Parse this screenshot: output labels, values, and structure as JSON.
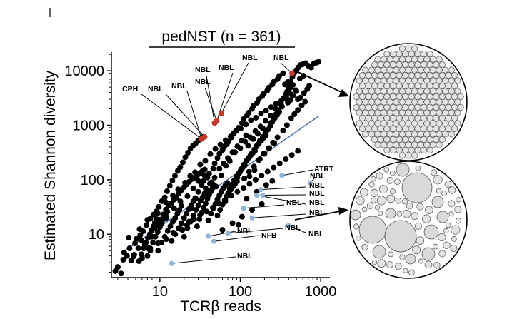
{
  "chart_data": {
    "type": "scatter",
    "title": "pedNST (n = 361)",
    "xlabel": "TCRβ reads",
    "ylabel": "Estimated Shannon diversity",
    "xscale": "log",
    "yscale": "log",
    "xlim": [
      2.5,
      1300
    ],
    "ylim": [
      1.6,
      22000
    ],
    "xticks": [
      10,
      100,
      1000
    ],
    "xtick_labels": [
      "10",
      "100",
      "1000"
    ],
    "yticks": [
      10,
      100,
      1000,
      10000
    ],
    "ytick_labels": [
      "10",
      "100",
      "1000",
      "10000"
    ],
    "grid": false,
    "legend": "none",
    "colors": {
      "black_points": "#000000",
      "red_points": "#c0392b",
      "blue_points": "#8fb4d6",
      "trend_line": "#4a6fa5"
    },
    "trend_line": {
      "x": [
        3.3,
        950
      ],
      "y": [
        4.4,
        1480
      ]
    },
    "black_points": [
      [
        2.8,
        2.1
      ],
      [
        3.0,
        2.5
      ],
      [
        3.3,
        1.9
      ],
      [
        3.5,
        3.4
      ],
      [
        3.6,
        4.6
      ],
      [
        3.9,
        4.0
      ],
      [
        4.2,
        5.5
      ],
      [
        4.4,
        3.3
      ],
      [
        4.7,
        3.9
      ],
      [
        4.9,
        6.8
      ],
      [
        5.1,
        8.2
      ],
      [
        5.4,
        5.5
      ],
      [
        5.7,
        9.6
      ],
      [
        5.9,
        7.8
      ],
      [
        6.2,
        11.3
      ],
      [
        6.5,
        6.7
      ],
      [
        6.8,
        14.7
      ],
      [
        7.2,
        5.5
      ],
      [
        7.6,
        19.3
      ],
      [
        7.9,
        11.6
      ],
      [
        8.3,
        22.9
      ],
      [
        8.6,
        13.2
      ],
      [
        9.0,
        26.1
      ],
      [
        9.3,
        16.2
      ],
      [
        9.7,
        31.9
      ],
      [
        10.2,
        18.6
      ],
      [
        10.6,
        40.5
      ],
      [
        11.0,
        23.1
      ],
      [
        11.5,
        47.4
      ],
      [
        11.9,
        28.4
      ],
      [
        12.3,
        61.7
      ],
      [
        12.8,
        33.1
      ],
      [
        13.3,
        77.8
      ],
      [
        13.8,
        36.3
      ],
      [
        14.3,
        96.5
      ],
      [
        14.9,
        42.9
      ],
      [
        15.4,
        117.7
      ],
      [
        16.0,
        46.8
      ],
      [
        16.7,
        145.3
      ],
      [
        17.2,
        55.6
      ],
      [
        17.9,
        169.8
      ],
      [
        18.5,
        64.7
      ],
      [
        19.3,
        208.8
      ],
      [
        20.0,
        73.8
      ],
      [
        20.7,
        258.8
      ],
      [
        21.5,
        82.4
      ],
      [
        22.3,
        311.5
      ],
      [
        23.1,
        91.7
      ],
      [
        24.0,
        375.2
      ],
      [
        24.9,
        102.6
      ],
      [
        25.9,
        426.6
      ],
      [
        26.8,
        108.9
      ],
      [
        27.9,
        468.8
      ],
      [
        28.9,
        117.7
      ],
      [
        30.0,
        524.8
      ],
      [
        31.2,
        129.4
      ],
      [
        32.3,
        571.0
      ],
      [
        33.5,
        143.0
      ],
      [
        34.8,
        610.4
      ],
      [
        36.1,
        154.2
      ],
      [
        4.1,
        8.7
      ],
      [
        5.6,
        12.4
      ],
      [
        7.0,
        18.3
      ],
      [
        9.4,
        24.4
      ],
      [
        11.8,
        38.7
      ],
      [
        14.5,
        51.2
      ],
      [
        16.9,
        66.8
      ],
      [
        20.6,
        88.3
      ],
      [
        23.8,
        117.4
      ],
      [
        27.4,
        137.0
      ],
      [
        31.8,
        190.7
      ],
      [
        36.7,
        222.7
      ],
      [
        42.4,
        296.8
      ],
      [
        49.0,
        369.2
      ],
      [
        56.6,
        441.9
      ],
      [
        65.6,
        528.9
      ],
      [
        75.7,
        619.4
      ],
      [
        87.6,
        775.2
      ],
      [
        101.1,
        871.8
      ],
      [
        117.0,
        1037.8
      ],
      [
        135.3,
        1235.4
      ],
      [
        156.3,
        1375.1
      ],
      [
        180.7,
        1631.4
      ],
      [
        209.0,
        1836.6
      ],
      [
        241.6,
        2150.8
      ],
      [
        279.2,
        2492.4
      ],
      [
        322.9,
        2788.6
      ],
      [
        373.4,
        3217.6
      ],
      [
        431.8,
        3675.5
      ],
      [
        499.3,
        4229.7
      ],
      [
        6.0,
        3.6
      ],
      [
        7.6,
        5.0
      ],
      [
        9.5,
        6.8
      ],
      [
        12.0,
        8.1
      ],
      [
        14.7,
        10.7
      ],
      [
        18.1,
        12.5
      ],
      [
        21.7,
        14.8
      ],
      [
        26.4,
        18.9
      ],
      [
        31.6,
        22.6
      ],
      [
        38.1,
        26.1
      ],
      [
        45.6,
        30.7
      ],
      [
        54.4,
        36.3
      ],
      [
        64.9,
        42.8
      ],
      [
        77.3,
        50.8
      ],
      [
        92.0,
        60.3
      ],
      [
        109.6,
        71.2
      ],
      [
        130.2,
        84.5
      ],
      [
        154.8,
        100.0
      ],
      [
        184.0,
        118.8
      ],
      [
        218.7,
        141.3
      ],
      [
        260.0,
        168.4
      ],
      [
        309.2,
        200.6
      ],
      [
        367.6,
        238.8
      ],
      [
        437.1,
        283.8
      ],
      [
        519.8,
        337.0
      ],
      [
        19.0,
        12.0
      ],
      [
        23.0,
        17.0
      ],
      [
        25.0,
        30.0
      ],
      [
        28.0,
        45.0
      ],
      [
        30.0,
        60.0
      ],
      [
        33.0,
        80.0
      ],
      [
        35.0,
        95.0
      ],
      [
        37.0,
        70.0
      ],
      [
        39.0,
        110.0
      ],
      [
        41.0,
        130.0
      ],
      [
        44.0,
        90.0
      ],
      [
        46.0,
        160.0
      ],
      [
        48.0,
        200.0
      ],
      [
        50.0,
        75.0
      ],
      [
        52.0,
        250.0
      ],
      [
        55.0,
        300.0
      ],
      [
        58.0,
        120.0
      ],
      [
        60.0,
        350.0
      ],
      [
        63.0,
        400.0
      ],
      [
        66.0,
        180.0
      ],
      [
        68.0,
        450.0
      ],
      [
        71.0,
        500.0
      ],
      [
        74.0,
        220.0
      ],
      [
        78.0,
        600.0
      ],
      [
        82.0,
        700.0
      ],
      [
        86.0,
        320.0
      ],
      [
        90.0,
        800.0
      ],
      [
        95.0,
        900.0
      ],
      [
        100.0,
        380.0
      ],
      [
        105.0,
        1100.0
      ],
      [
        110.0,
        1300.0
      ],
      [
        115.0,
        500.0
      ],
      [
        121.0,
        1500.0
      ],
      [
        127.0,
        1700.0
      ],
      [
        133.0,
        600.0
      ],
      [
        140.0,
        2000.0
      ],
      [
        147.0,
        2300.0
      ],
      [
        154.0,
        780.0
      ],
      [
        162.0,
        2600.0
      ],
      [
        170.0,
        3000.0
      ],
      [
        178.0,
        950.0
      ],
      [
        187.0,
        3400.0
      ],
      [
        196.0,
        3800.0
      ],
      [
        206.0,
        1200.0
      ],
      [
        216.0,
        4300.0
      ],
      [
        227.0,
        4900.0
      ],
      [
        238.0,
        1500.0
      ],
      [
        250.0,
        5600.0
      ],
      [
        262.0,
        6300.0
      ],
      [
        275.0,
        2000.0
      ],
      [
        290.0,
        7000.0
      ],
      [
        305.0,
        8000.0
      ],
      [
        320.0,
        2600.0
      ],
      [
        340.0,
        9000.0
      ],
      [
        360.0,
        3200.0
      ],
      [
        380.0,
        4100.0
      ],
      [
        400.0,
        5200.0
      ],
      [
        420.0,
        6500.0
      ],
      [
        445.0,
        7800.0
      ],
      [
        470.0,
        9200.0
      ],
      [
        500.0,
        10300.0
      ],
      [
        530.0,
        11600.0
      ],
      [
        560.0,
        12800.0
      ],
      [
        600.0,
        13200.0
      ],
      [
        650.0,
        13800.0
      ],
      [
        700.0,
        12400.0
      ],
      [
        760.0,
        11500.0
      ],
      [
        820.0,
        13500.0
      ],
      [
        880.0,
        14100.0
      ],
      [
        940.0,
        14600.0
      ],
      [
        300.0,
        1800.0
      ],
      [
        330.0,
        2200.0
      ],
      [
        360.0,
        5600.0
      ],
      [
        390.0,
        6200.0
      ],
      [
        420.0,
        2900.0
      ],
      [
        455.0,
        3500.0
      ],
      [
        490.0,
        4400.0
      ],
      [
        520.0,
        3000.0
      ],
      [
        550.0,
        7200.0
      ],
      [
        610.0,
        8100.0
      ],
      [
        240.0,
        1100.0
      ],
      [
        260.0,
        1400.0
      ],
      [
        280.0,
        1600.0
      ],
      [
        300.0,
        1900.0
      ],
      [
        320.0,
        2400.0
      ],
      [
        345.0,
        3100.0
      ],
      [
        370.0,
        3700.0
      ],
      [
        395.0,
        4400.0
      ],
      [
        420.0,
        4900.0
      ],
      [
        450.0,
        5500.0
      ],
      [
        160.0,
        420.0
      ],
      [
        175.0,
        520.0
      ],
      [
        190.0,
        610.0
      ],
      [
        205.0,
        720.0
      ],
      [
        220.0,
        830.0
      ],
      [
        235.0,
        960.0
      ],
      [
        250.0,
        1150.0
      ],
      [
        268.0,
        1350.0
      ],
      [
        286.0,
        1540.0
      ],
      [
        305.0,
        1750.0
      ],
      [
        110.0,
        180.0
      ],
      [
        120.0,
        220.0
      ],
      [
        130.0,
        260.0
      ],
      [
        140.0,
        310.0
      ],
      [
        150.0,
        360.0
      ],
      [
        160.0,
        410.0
      ],
      [
        170.0,
        460.0
      ],
      [
        182.0,
        520.0
      ],
      [
        195.0,
        590.0
      ],
      [
        208.0,
        650.0
      ],
      [
        85.0,
        90.0
      ],
      [
        92.0,
        110.0
      ],
      [
        98.0,
        135.0
      ],
      [
        104.0,
        160.0
      ],
      [
        111.0,
        190.0
      ],
      [
        118.0,
        220.0
      ],
      [
        126.0,
        250.0
      ],
      [
        134.0,
        280.0
      ],
      [
        143.0,
        310.0
      ],
      [
        152.0,
        340.0
      ],
      [
        65.0,
        40.0
      ],
      [
        70.0,
        55.0
      ],
      [
        74.0,
        68.0
      ],
      [
        79.0,
        82.0
      ],
      [
        84.0,
        98.0
      ],
      [
        89.0,
        114.0
      ],
      [
        95.0,
        130.0
      ],
      [
        101.0,
        148.0
      ],
      [
        107.0,
        166.0
      ],
      [
        114.0,
        184.0
      ],
      [
        52.0,
        22.0
      ],
      [
        56.0,
        28.0
      ],
      [
        60.0,
        35.0
      ],
      [
        64.0,
        42.0
      ],
      [
        68.0,
        50.0
      ],
      [
        72.0,
        58.0
      ],
      [
        76.0,
        66.0
      ],
      [
        81.0,
        75.0
      ],
      [
        86.0,
        84.0
      ],
      [
        91.0,
        94.0
      ],
      [
        40.0,
        18.0
      ],
      [
        43.0,
        24.0
      ],
      [
        46.0,
        30.0
      ],
      [
        49.0,
        36.0
      ],
      [
        52.0,
        44.0
      ],
      [
        55.0,
        52.0
      ],
      [
        58.0,
        60.0
      ],
      [
        61.0,
        69.0
      ],
      [
        65.0,
        78.0
      ],
      [
        69.0,
        87.0
      ],
      [
        29.0,
        14.0
      ],
      [
        31.0,
        19.0
      ],
      [
        33.0,
        25.0
      ],
      [
        35.0,
        31.0
      ],
      [
        37.0,
        37.0
      ],
      [
        39.0,
        45.0
      ],
      [
        41.0,
        53.0
      ],
      [
        43.0,
        61.0
      ],
      [
        45.0,
        70.0
      ],
      [
        47.0,
        80.0
      ],
      [
        20.0,
        9.0
      ],
      [
        22.0,
        13.0
      ],
      [
        24.0,
        17.0
      ],
      [
        26.0,
        22.0
      ],
      [
        28.0,
        28.0
      ],
      [
        30.0,
        34.0
      ],
      [
        32.0,
        41.0
      ],
      [
        34.0,
        48.0
      ],
      [
        36.0,
        56.0
      ],
      [
        38.0,
        65.0
      ],
      [
        14.0,
        7.5
      ],
      [
        15.5,
        10.0
      ],
      [
        17.0,
        13.0
      ],
      [
        18.5,
        16.0
      ],
      [
        20.0,
        20.0
      ],
      [
        21.5,
        24.0
      ],
      [
        23.0,
        29.0
      ],
      [
        24.5,
        34.0
      ],
      [
        26.0,
        40.0
      ],
      [
        27.5,
        46.0
      ],
      [
        9.5,
        5.0
      ],
      [
        10.5,
        7.0
      ],
      [
        11.5,
        9.0
      ],
      [
        12.5,
        11.5
      ],
      [
        13.5,
        14.0
      ],
      [
        14.5,
        17.0
      ],
      [
        15.5,
        20.0
      ],
      [
        16.5,
        24.0
      ],
      [
        17.5,
        28.0
      ],
      [
        18.5,
        33.0
      ],
      [
        7.0,
        4.0
      ],
      [
        7.6,
        5.5
      ],
      [
        8.2,
        7.0
      ],
      [
        8.8,
        9.0
      ],
      [
        9.4,
        11.0
      ],
      [
        10.0,
        13.5
      ],
      [
        10.6,
        16.0
      ],
      [
        11.2,
        19.0
      ],
      [
        11.8,
        22.0
      ],
      [
        12.4,
        26.0
      ],
      [
        5.5,
        3.2
      ],
      [
        5.9,
        4.3
      ],
      [
        6.3,
        5.5
      ],
      [
        6.7,
        7.0
      ],
      [
        7.1,
        8.5
      ],
      [
        7.5,
        10.0
      ],
      [
        7.9,
        12.0
      ],
      [
        8.3,
        14.0
      ],
      [
        8.7,
        16.5
      ],
      [
        9.1,
        19.0
      ],
      [
        60.0,
        12.0
      ],
      [
        80.0,
        16.0
      ],
      [
        105.0,
        21.0
      ],
      [
        140.0,
        28.0
      ],
      [
        185.0,
        36.0
      ],
      [
        120.0,
        45.0
      ],
      [
        160.0,
        60.0
      ],
      [
        210.0,
        80.0
      ],
      [
        250.0,
        95.0
      ],
      [
        95.0,
        15.0
      ],
      [
        200.0,
        300.0
      ],
      [
        230.0,
        380.0
      ],
      [
        265.0,
        470.0
      ],
      [
        130.0,
        115.0
      ],
      [
        150.0,
        150.0
      ],
      [
        175.0,
        240.0
      ],
      [
        125.0,
        420.0
      ],
      [
        145.0,
        560.0
      ],
      [
        165.0,
        700.0
      ],
      [
        190.0,
        880.0
      ],
      [
        70.0,
        250.0
      ],
      [
        80.0,
        320.0
      ],
      [
        92.0,
        410.0
      ],
      [
        104.0,
        520.0
      ],
      [
        118.0,
        650.0
      ],
      [
        55.0,
        160.0
      ],
      [
        62.0,
        200.0
      ],
      [
        48.0,
        110.0
      ],
      [
        42.0,
        85.0
      ],
      [
        36.0,
        120.0
      ],
      [
        26.0,
        70.0
      ],
      [
        30.0,
        95.0
      ],
      [
        22.0,
        50.0
      ],
      [
        18.0,
        40.0
      ],
      [
        15.0,
        30.0
      ],
      [
        12.0,
        20.0
      ],
      [
        10.0,
        14.0
      ],
      [
        8.0,
        9.0
      ],
      [
        6.5,
        6.0
      ],
      [
        4.8,
        4.2
      ],
      [
        340.0,
        800.0
      ],
      [
        380.0,
        1000.0
      ],
      [
        290.0,
        600.0
      ],
      [
        255.0,
        480.0
      ],
      [
        225.0,
        380.0
      ],
      [
        195.0,
        300.0
      ],
      [
        170.0,
        230.0
      ],
      [
        148.0,
        175.0
      ],
      [
        128.0,
        140.0
      ],
      [
        112.0,
        105.0
      ],
      [
        520.0,
        1900.0
      ],
      [
        580.0,
        2300.0
      ],
      [
        640.0,
        2700.0
      ],
      [
        470.0,
        1600.0
      ],
      [
        430.0,
        1350.0
      ],
      [
        560.0,
        3200.0
      ],
      [
        620.0,
        3900.0
      ],
      [
        680.0,
        4600.0
      ],
      [
        720.0,
        5300.0
      ],
      [
        390.0,
        2600.0
      ]
    ],
    "red_points": [
      [
        33.0,
        560.0
      ],
      [
        36.0,
        610.0
      ],
      [
        48.0,
        1100.0
      ],
      [
        51.0,
        1200.0
      ],
      [
        58.0,
        1650.0
      ],
      [
        440.0,
        9000.0
      ]
    ],
    "blue_points": [
      [
        14.0,
        2.9
      ],
      [
        40.0,
        9.2
      ],
      [
        47.0,
        7.4
      ],
      [
        70.0,
        10.4
      ],
      [
        110.0,
        30.0
      ],
      [
        140.0,
        20.0
      ],
      [
        160.0,
        52.0
      ],
      [
        180.0,
        66.0
      ],
      [
        190.0,
        52.0
      ],
      [
        330.0,
        120.0
      ],
      [
        400.0,
        14.4
      ],
      [
        740.0,
        88.0
      ]
    ],
    "annotations": [
      {
        "text": "CPH"
      },
      {
        "text": "NBL"
      },
      {
        "text": "NBL"
      },
      {
        "text": "NBL"
      },
      {
        "text": "NBL"
      },
      {
        "text": "NBL"
      },
      {
        "text": "NBL"
      },
      {
        "text": "NBL"
      },
      {
        "text": "ATRT"
      },
      {
        "text": "NBL"
      },
      {
        "text": "NBL"
      },
      {
        "text": "NBL"
      },
      {
        "text": "NBL"
      },
      {
        "text": "NBL"
      },
      {
        "text": "NBL"
      },
      {
        "text": "NBL"
      },
      {
        "text": "NFB"
      },
      {
        "text": "NBL"
      },
      {
        "text": "NBL"
      },
      {
        "text": "NBL"
      }
    ]
  }
}
